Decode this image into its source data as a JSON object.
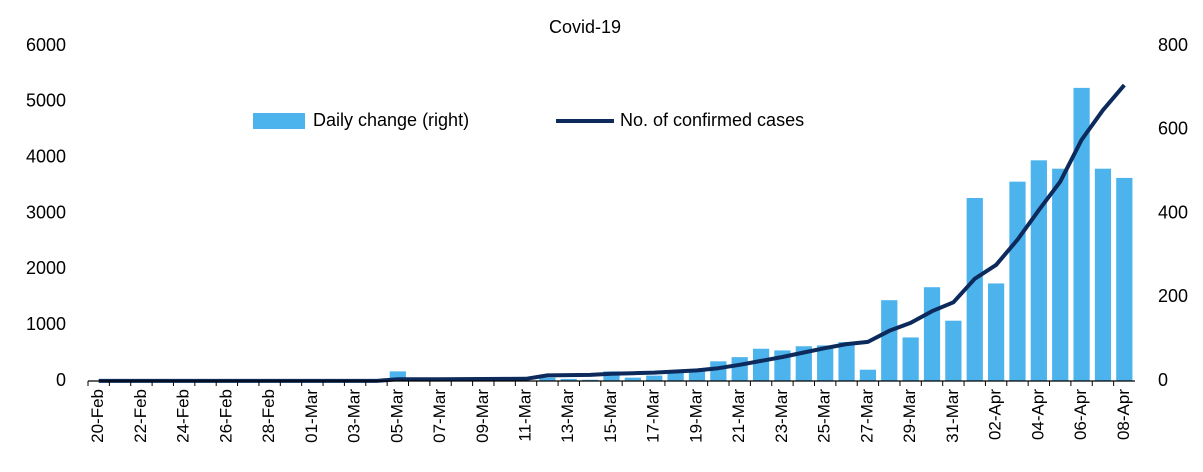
{
  "chart_data": {
    "type": "combo",
    "title": "Covid-19",
    "categories": [
      "20-Feb",
      null,
      "22-Feb",
      null,
      "24-Feb",
      null,
      "26-Feb",
      null,
      "28-Feb",
      null,
      "01-Mar",
      null,
      "03-Mar",
      null,
      "05-Mar",
      null,
      "07-Mar",
      null,
      "09-Mar",
      null,
      "11-Mar",
      null,
      "13-Mar",
      null,
      "15-Mar",
      null,
      "17-Mar",
      null,
      "19-Mar",
      null,
      "21-Mar",
      null,
      "23-Mar",
      null,
      "25-Mar",
      null,
      "27-Mar",
      null,
      "29-Mar",
      null,
      "31-Mar",
      null,
      "02-Apr",
      null,
      "04-Apr",
      null,
      "06-Apr",
      null,
      "08-Apr"
    ],
    "series": [
      {
        "name": "Daily change (right)",
        "type": "bar",
        "axis": "y2",
        "color": "#4db3ed",
        "values": [
          0,
          0,
          0,
          0,
          0,
          0,
          0,
          0,
          0,
          0,
          0,
          0,
          0,
          0,
          23,
          1,
          1,
          1,
          1,
          1,
          1,
          8,
          5,
          3,
          23,
          8,
          13,
          20,
          27,
          47,
          57,
          77,
          73,
          83,
          85,
          93,
          27,
          193,
          104,
          224,
          144,
          437,
          233,
          476,
          527,
          507,
          700,
          507,
          485
        ]
      },
      {
        "name": "No. of confirmed cases",
        "type": "line",
        "axis": "y",
        "color": "#0d2a5c",
        "values": [
          2,
          2,
          2,
          2,
          2,
          2,
          2,
          2,
          2,
          2,
          2,
          2,
          2,
          2,
          30,
          32,
          33,
          34,
          35,
          37,
          40,
          100,
          105,
          110,
          130,
          140,
          150,
          170,
          190,
          230,
          290,
          360,
          430,
          510,
          590,
          660,
          700,
          900,
          1040,
          1250,
          1410,
          1830,
          2080,
          2530,
          3060,
          3570,
          4320,
          4850,
          5300
        ]
      }
    ],
    "ylim": [
      0,
      6000
    ],
    "yticks": [
      0,
      1000,
      2000,
      3000,
      4000,
      5000,
      6000
    ],
    "y2lim": [
      0,
      800
    ],
    "y2ticks": [
      0,
      200,
      400,
      600,
      800
    ]
  }
}
